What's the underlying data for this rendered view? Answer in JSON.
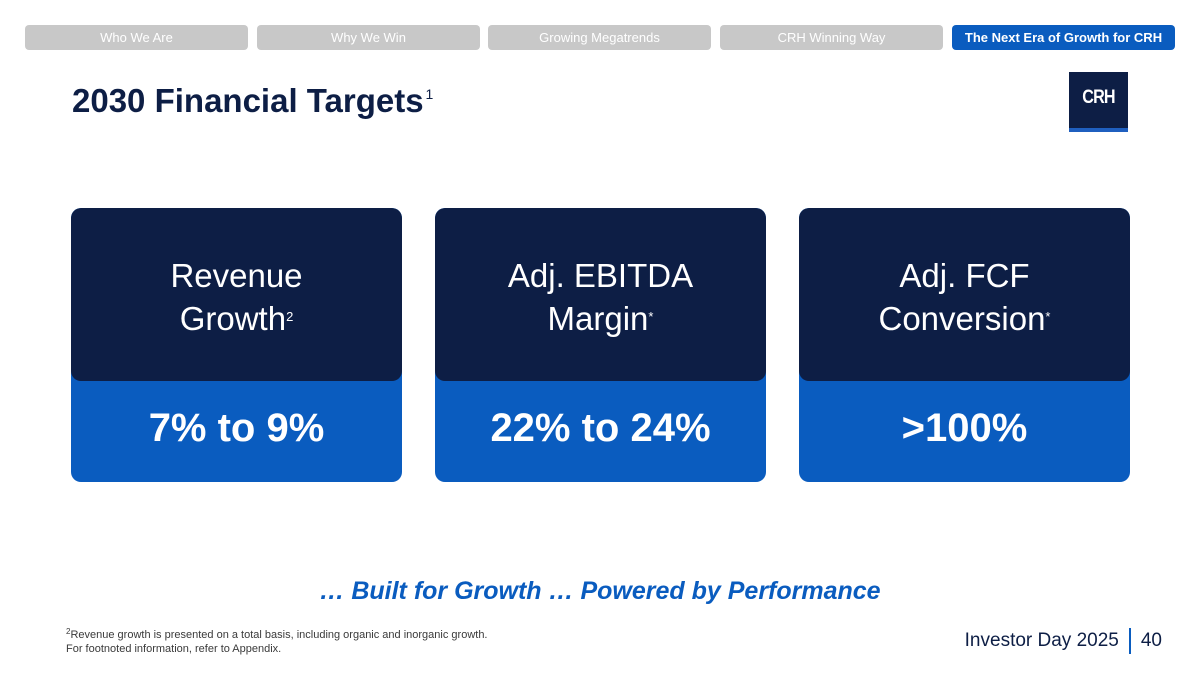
{
  "nav": {
    "tabs": [
      {
        "label": "Who We Are"
      },
      {
        "label": "Why We Win"
      },
      {
        "label": "Growing Megatrends"
      },
      {
        "label": "CRH Winning Way"
      },
      {
        "label": "The Next Era of Growth for CRH"
      }
    ]
  },
  "header": {
    "title": "2030 Financial Targets",
    "title_footnote": "1",
    "logo_text": "CRH"
  },
  "targets": [
    {
      "label_line1": "Revenue",
      "label_line2": "Growth",
      "marker": "2",
      "value": "7% to 9%"
    },
    {
      "label_line1": "Adj. EBITDA",
      "label_line2": "Margin",
      "marker": "*",
      "value": "22% to 24%"
    },
    {
      "label_line1": "Adj. FCF",
      "label_line2": "Conversion",
      "marker": "*",
      "value": ">100%"
    }
  ],
  "tagline": "… Built for Growth … Powered by Performance",
  "footnotes": {
    "marker": "2",
    "line1": "Revenue growth is presented on a total basis, including organic and inorganic growth.",
    "line2": "For footnoted information, refer to Appendix."
  },
  "footer": {
    "event": "Investor Day 2025",
    "page_number": "40"
  },
  "colors": {
    "navy": "#0d1e45",
    "blue": "#0a5cbf",
    "tab_inactive": "#c8c8c8"
  }
}
